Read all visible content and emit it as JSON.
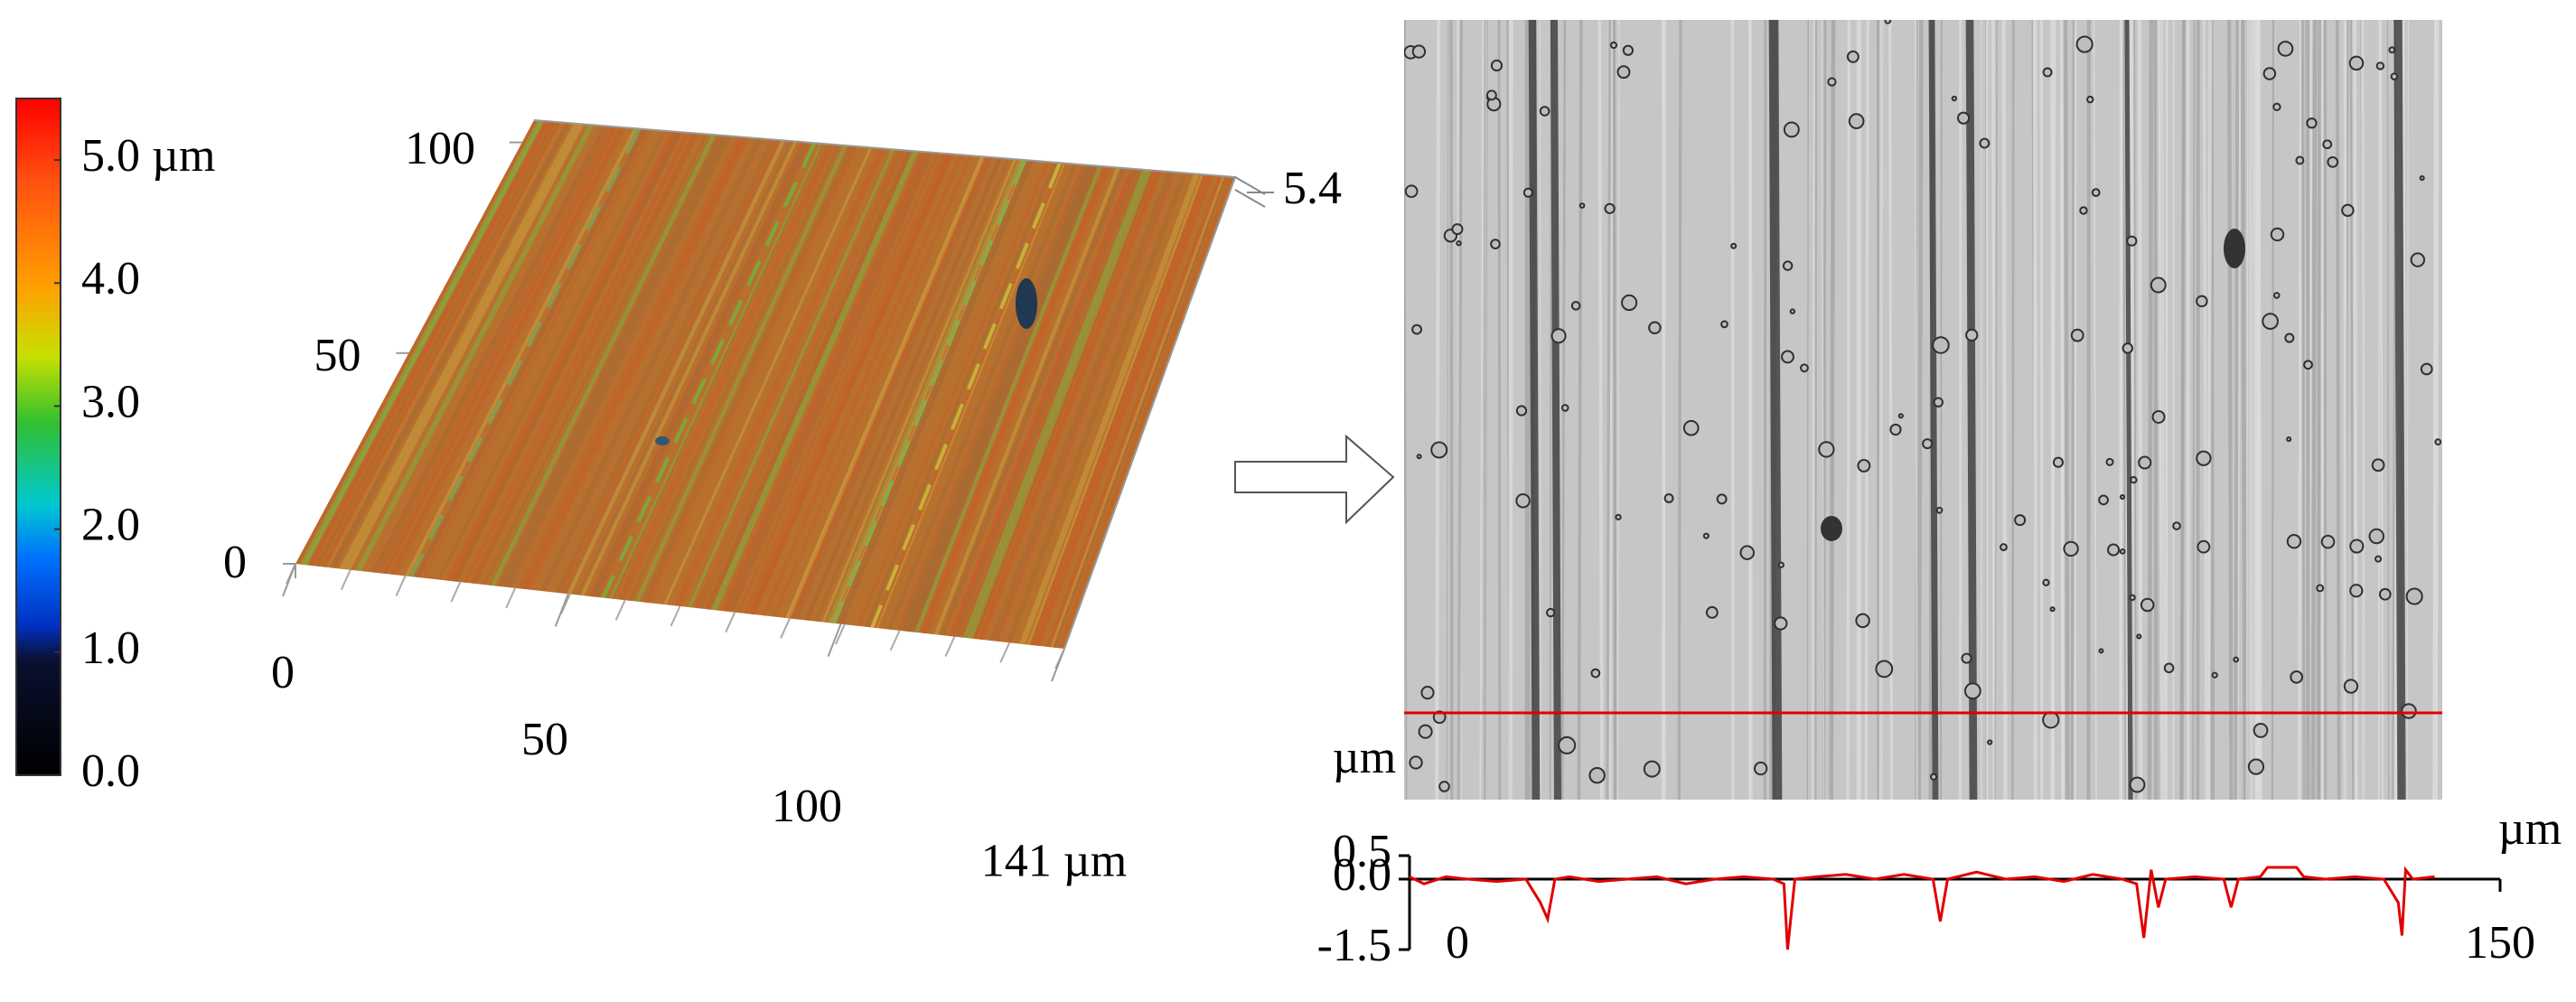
{
  "chart_data": [
    {
      "type": "colorbar",
      "ylim": [
        0,
        5.5
      ],
      "yticks": [
        {
          "value": 0,
          "label": "0.0"
        },
        {
          "value": 1,
          "label": "1.0"
        },
        {
          "value": 2,
          "label": "2.0"
        },
        {
          "value": 3,
          "label": "3.0"
        },
        {
          "value": 4,
          "label": "4.0"
        },
        {
          "value": 5,
          "label": "5.0 µm"
        }
      ]
    },
    {
      "type": "surface3d",
      "xlim": [
        0,
        141
      ],
      "xticks": [
        0,
        50,
        100,
        {
          "value": 141,
          "label": "141 µm"
        }
      ],
      "ylim": [
        0,
        100
      ],
      "yticks": [
        0,
        50,
        100
      ],
      "zticks": [
        5.4
      ]
    },
    {
      "type": "line",
      "y_label": "µm",
      "x_label": "µm",
      "color": "#e00000",
      "xlim": [
        0,
        150
      ],
      "xticks": [
        0,
        150
      ],
      "ylim": [
        -1.5,
        0.5
      ],
      "yticks": [
        0.5,
        {
          "value": 0,
          "label": "0.0"
        },
        -1.5
      ],
      "x": [
        0,
        2,
        5,
        8,
        12,
        16,
        18,
        19,
        20,
        22,
        26,
        30,
        34,
        38,
        42,
        46,
        50,
        51.5,
        52,
        53,
        56,
        60,
        64,
        68,
        72,
        73,
        74,
        78,
        82,
        86,
        90,
        94,
        98,
        100,
        101,
        102,
        103,
        104,
        108,
        112,
        113,
        114,
        117,
        118,
        119,
        122,
        123,
        126,
        130,
        134,
        136,
        136.5,
        137,
        138,
        141
      ],
      "values": [
        0.05,
        -0.1,
        0.05,
        0,
        -0.05,
        0,
        -0.5,
        -0.85,
        0,
        0.05,
        -0.05,
        0,
        0.05,
        -0.1,
        0,
        0.05,
        0,
        -0.1,
        -1.5,
        0,
        0.05,
        0.1,
        0,
        0.1,
        0,
        -0.9,
        0,
        0.15,
        0,
        0.05,
        -0.05,
        0.1,
        0,
        -0.1,
        -1.25,
        0.2,
        -0.6,
        0,
        0.05,
        0,
        -0.6,
        0,
        0.05,
        0.25,
        0.25,
        0.25,
        0.05,
        0,
        0.05,
        0,
        -0.5,
        -1.2,
        0.2,
        0,
        0.05
      ]
    }
  ]
}
